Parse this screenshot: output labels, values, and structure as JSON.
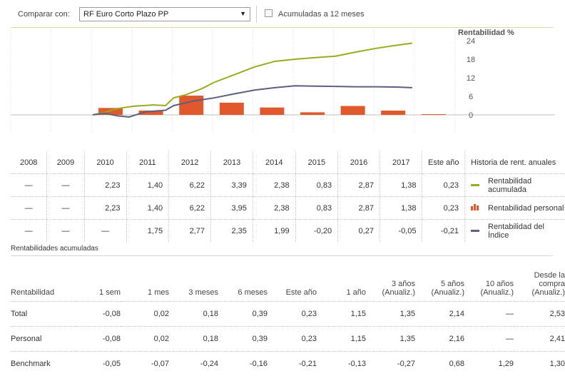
{
  "compare": {
    "label": "Comparar con:",
    "selected": "RF Euro Corto Plazo PP",
    "accumulate_label": "Acumuladas a 12 meses"
  },
  "chart_data": {
    "type": "bar+line",
    "title": "Rentabilidad %",
    "y_ticks": [
      "24",
      "18",
      "12",
      "6",
      "0"
    ],
    "ylim": [
      -5,
      25
    ],
    "bars": {
      "name": "Rentabilidad personal",
      "categories": [
        "2010",
        "2011",
        "2012",
        "2013",
        "2014",
        "2015",
        "2016",
        "2017",
        "Este año"
      ],
      "values": [
        2.23,
        1.4,
        6.22,
        3.95,
        2.38,
        0.83,
        2.87,
        1.38,
        0.23
      ]
    },
    "lines": [
      {
        "name": "Rentabilidad acumulada",
        "points": [
          [
            2010,
            0
          ],
          [
            2010.3,
            0.8
          ],
          [
            2010.6,
            2.0
          ],
          [
            2011,
            2.8
          ],
          [
            2011.5,
            3.2
          ],
          [
            2011.8,
            3.0
          ],
          [
            2012,
            5.5
          ],
          [
            2012.3,
            6.5
          ],
          [
            2012.7,
            8.5
          ],
          [
            2013,
            10.5
          ],
          [
            2013.5,
            13.0
          ],
          [
            2014,
            15.5
          ],
          [
            2014.5,
            17.3
          ],
          [
            2015,
            18.0
          ],
          [
            2015.5,
            18.5
          ],
          [
            2016,
            19.0
          ],
          [
            2016.5,
            20.3
          ],
          [
            2017,
            21.5
          ],
          [
            2017.5,
            22.5
          ],
          [
            2017.9,
            23.2
          ]
        ]
      },
      {
        "name": "Rentabilidad del Índice",
        "points": [
          [
            2010,
            0
          ],
          [
            2010.3,
            0.5
          ],
          [
            2010.6,
            -0.3
          ],
          [
            2010.9,
            -0.7
          ],
          [
            2011.3,
            1.0
          ],
          [
            2011.8,
            1.5
          ],
          [
            2012,
            3.0
          ],
          [
            2012.5,
            4.5
          ],
          [
            2013,
            5.5
          ],
          [
            2013.5,
            6.8
          ],
          [
            2014,
            8.0
          ],
          [
            2014.5,
            8.8
          ],
          [
            2015,
            9.4
          ],
          [
            2015.5,
            9.3
          ],
          [
            2016,
            9.2
          ],
          [
            2016.5,
            9.1
          ],
          [
            2017,
            9.1
          ],
          [
            2017.5,
            9.0
          ],
          [
            2017.9,
            8.8
          ]
        ]
      }
    ],
    "colors": {
      "bars": "#e0582b",
      "accum": "#9aab1e",
      "index": "#5a6080"
    }
  },
  "annual": {
    "years": [
      "2008",
      "2009",
      "2010",
      "2011",
      "2012",
      "2013",
      "2014",
      "2015",
      "2016",
      "2017",
      "Este año"
    ],
    "legend_title": "Historia de rent. anuales",
    "rows": [
      {
        "legend": "Rentabilidad acumulada",
        "color": "#9aab1e",
        "values": [
          "—",
          "—",
          "2,23",
          "1,40",
          "6,22",
          "3,39",
          "2,38",
          "0,83",
          "2,87",
          "1,38",
          "0,23"
        ]
      },
      {
        "legend": "Rentabilidad personal",
        "color": "#e0582b",
        "values": [
          "—",
          "—",
          "2,23",
          "1,40",
          "6,22",
          "3,95",
          "2,38",
          "0,83",
          "2,87",
          "1,38",
          "0,23"
        ]
      },
      {
        "legend": "Rentabilidad del Índice",
        "color": "#5a6080",
        "values": [
          "—",
          "—",
          "—",
          "1,75",
          "2,77",
          "2,35",
          "1,99",
          "-0,20",
          "0,27",
          "-0,05",
          "-0,21"
        ]
      }
    ]
  },
  "cumulative": {
    "title": "Rentabilidades acumuladas",
    "headers": [
      "Rentabilidad",
      "1 sem",
      "1 mes",
      "3 meses",
      "6 meses",
      "Este año",
      "1 año",
      "3 años (Anualiz.)",
      "5 años (Anualiz.)",
      "10 años (Anualiz.)",
      "Desde la compra (Anualiz.)"
    ],
    "rows": [
      {
        "label": "Total",
        "values": [
          "-0,08",
          "0,02",
          "0,18",
          "0,39",
          "0,23",
          "1,15",
          "1,35",
          "2,14",
          "—",
          "2,53"
        ]
      },
      {
        "label": "Personal",
        "values": [
          "-0,08",
          "0,02",
          "0,18",
          "0,39",
          "0,23",
          "1,15",
          "1,35",
          "2,16",
          "—",
          "2,41"
        ]
      },
      {
        "label": "Benchmark",
        "values": [
          "-0,05",
          "-0,07",
          "-0,24",
          "-0,16",
          "-0,21",
          "-0,13",
          "-0,27",
          "0,68",
          "1,29",
          "1,30"
        ]
      }
    ]
  }
}
